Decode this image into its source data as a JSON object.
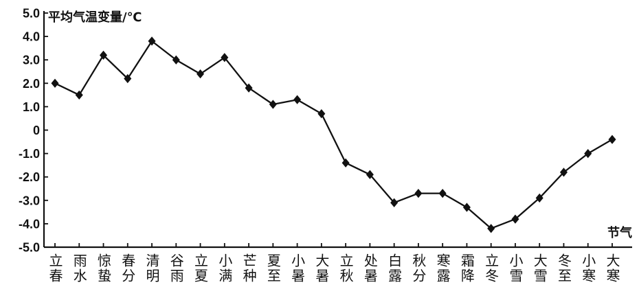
{
  "chart_data": {
    "type": "line",
    "ylabel": "平均气温变量/℃",
    "xlabel": "节气",
    "ylim": [
      -5,
      5
    ],
    "yticks": [
      "5.0",
      "4.0",
      "3.0",
      "2.0",
      "1.0",
      "0",
      "-1.0",
      "-2.0",
      "-3.0",
      "-4.0",
      "-5.0"
    ],
    "categories": [
      "立春",
      "雨水",
      "惊蛰",
      "春分",
      "清明",
      "谷雨",
      "立夏",
      "小满",
      "芒种",
      "夏至",
      "小暑",
      "大暑",
      "立秋",
      "处暑",
      "白露",
      "秋分",
      "寒露",
      "霜降",
      "立冬",
      "小雪",
      "大雪",
      "冬至",
      "小寒",
      "大寒"
    ],
    "values": [
      2.0,
      1.5,
      3.2,
      2.2,
      3.8,
      3.0,
      2.4,
      3.1,
      1.8,
      1.1,
      1.3,
      0.7,
      -1.4,
      -1.9,
      -3.1,
      -2.7,
      -2.7,
      -3.3,
      -4.2,
      -3.8,
      -2.9,
      -1.8,
      -1.0,
      -0.4
    ],
    "marker": "diamond",
    "grid": false,
    "line_color": "#111111"
  }
}
